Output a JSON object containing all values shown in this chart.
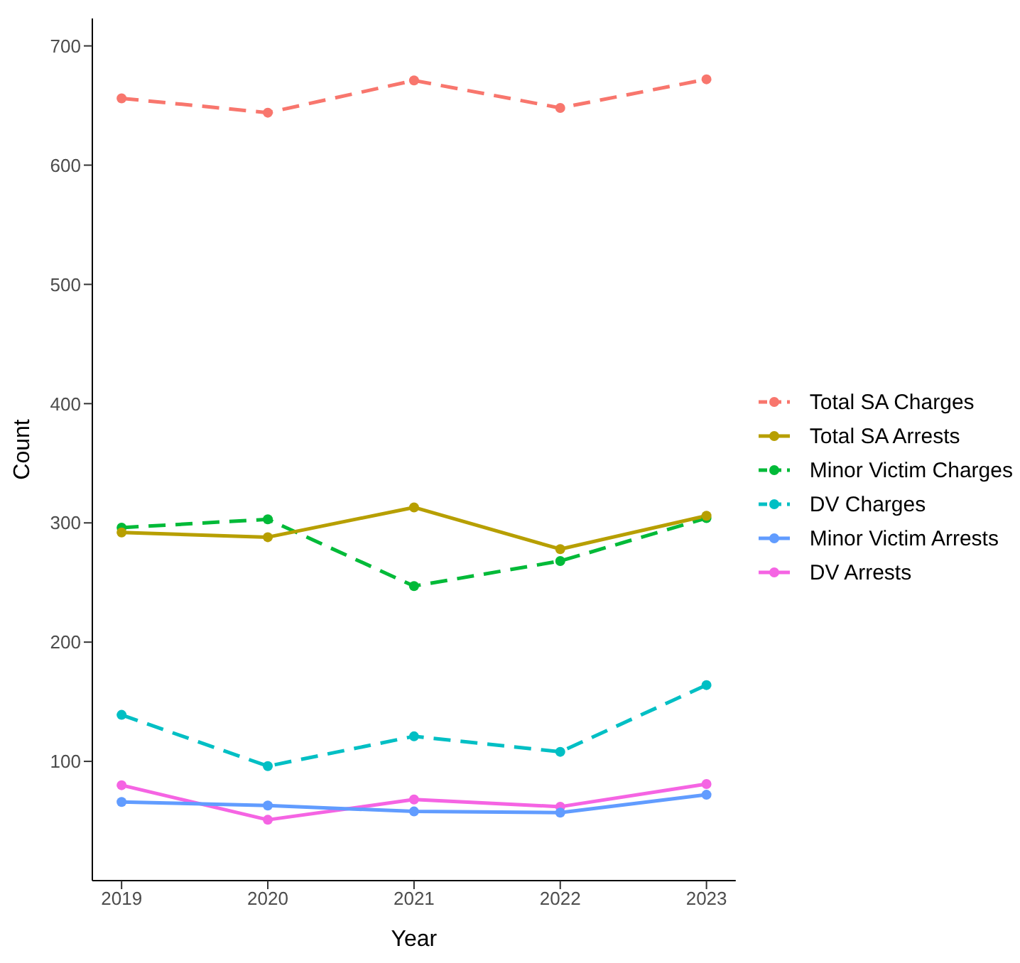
{
  "chart_data": {
    "type": "line",
    "xlabel": "Year",
    "ylabel": "Count",
    "x": [
      2019,
      2020,
      2021,
      2022,
      2023
    ],
    "xlim": [
      2018.8,
      2023.2
    ],
    "xticks": [
      2019,
      2020,
      2021,
      2022,
      2023
    ],
    "ylim": [
      0,
      723
    ],
    "yticks": [
      100,
      200,
      300,
      400,
      500,
      600,
      700
    ],
    "grid": false,
    "legend": "right",
    "marker": "circle",
    "series": [
      {
        "name": "Total SA Charges",
        "color": "#f8766d",
        "line_style": "dashed",
        "values": [
          656,
          644,
          671,
          648,
          672
        ]
      },
      {
        "name": "Total SA Arrests",
        "color": "#b79f00",
        "line_style": "solid",
        "values": [
          292,
          288,
          313,
          278,
          306
        ]
      },
      {
        "name": "Minor Victim Charges",
        "color": "#00ba38",
        "line_style": "dashed",
        "values": [
          296,
          303,
          247,
          268,
          304
        ]
      },
      {
        "name": "DV Charges",
        "color": "#00bfc4",
        "line_style": "dashed",
        "values": [
          139,
          96,
          121,
          108,
          164
        ]
      },
      {
        "name": "Minor Victim Arrests",
        "color": "#619cff",
        "line_style": "solid",
        "values": [
          66,
          63,
          58,
          57,
          72
        ]
      },
      {
        "name": "DV Arrests",
        "color": "#f564e3",
        "line_style": "solid",
        "values": [
          80,
          51,
          68,
          62,
          81
        ]
      }
    ]
  }
}
